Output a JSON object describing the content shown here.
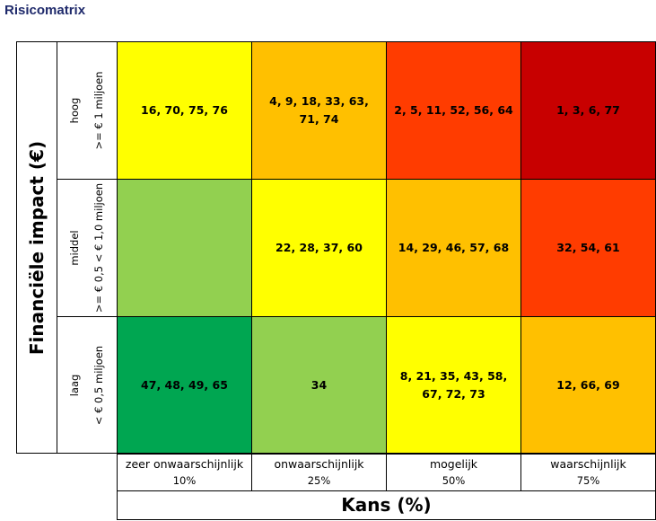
{
  "title": "Risicomatrix",
  "y_axis": {
    "label": "Financiële impact (€)"
  },
  "x_axis": {
    "label": "Kans (%)"
  },
  "rows": [
    {
      "name": "hoog",
      "range": ">= € 1 miljoen"
    },
    {
      "name": "middel",
      "range": ">= € 0,5 < € 1,0 miljoen"
    },
    {
      "name": "laag",
      "range": "< € 0,5 miljoen"
    }
  ],
  "columns": [
    {
      "name": "zeer onwaarschijnlijk",
      "pct": "10%"
    },
    {
      "name": "onwaarschijnlijk",
      "pct": "25%"
    },
    {
      "name": "mogelijk",
      "pct": "50%"
    },
    {
      "name": "waarschijnlijk",
      "pct": "75%"
    }
  ],
  "cells": [
    [
      {
        "text": "16, 70, 75, 76",
        "color": "#ffff00"
      },
      {
        "text": "4, 9, 18, 33, 63, 71, 74",
        "color": "#ffc000"
      },
      {
        "text": "2, 5, 11, 52, 56, 64",
        "color": "#ff3c00"
      },
      {
        "text": "1, 3, 6, 77",
        "color": "#c80000"
      }
    ],
    [
      {
        "text": "",
        "color": "#92d050"
      },
      {
        "text": "22, 28, 37, 60",
        "color": "#ffff00"
      },
      {
        "text": "14, 29, 46, 57, 68",
        "color": "#ffc000"
      },
      {
        "text": "32, 54, 61",
        "color": "#ff3c00"
      }
    ],
    [
      {
        "text": "47, 48, 49, 65",
        "color": "#00a651"
      },
      {
        "text": "34",
        "color": "#92d050"
      },
      {
        "text": "8, 21, 35, 43, 58, 67, 72, 73",
        "color": "#ffff00"
      },
      {
        "text": "12, 66, 69",
        "color": "#ffc000"
      }
    ]
  ]
}
